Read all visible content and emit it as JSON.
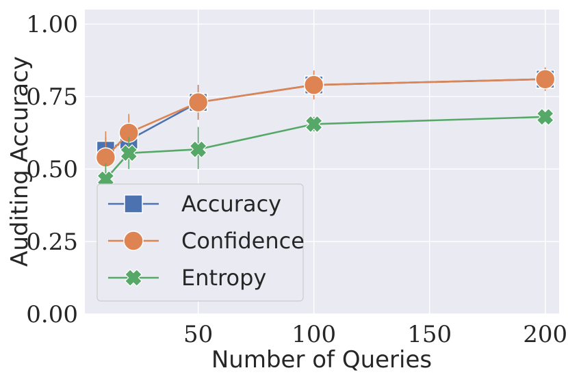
{
  "chart_data": {
    "type": "line",
    "title": "",
    "xlabel": "Number of Queries",
    "ylabel": "Auditing Accuracy",
    "xlim": [
      1,
      206
    ],
    "ylim": [
      0.0,
      1.05
    ],
    "xticks": [
      50,
      100,
      150,
      200
    ],
    "xtick_labels": [
      "50",
      "100",
      "150",
      "200"
    ],
    "yticks": [
      0.0,
      0.25,
      0.5,
      0.75,
      1.0
    ],
    "ytick_labels": [
      "0.00",
      "0.25",
      "0.50",
      "0.75",
      "1.00"
    ],
    "grid": true,
    "legend_position": "lower-left",
    "x": [
      10,
      20,
      50,
      100,
      200
    ],
    "series": [
      {
        "name": "Accuracy",
        "marker": "square",
        "color": "#4c72b0",
        "values": [
          0.565,
          0.6,
          0.73,
          0.79,
          0.81
        ],
        "error_low": [
          0.52,
          0.55,
          0.67,
          0.75,
          0.77
        ],
        "error_high": [
          0.61,
          0.65,
          0.79,
          0.83,
          0.85
        ]
      },
      {
        "name": "Confidence",
        "marker": "circle",
        "color": "#dd8452",
        "values": [
          0.54,
          0.625,
          0.73,
          0.79,
          0.81
        ],
        "error_low": [
          0.45,
          0.57,
          0.67,
          0.74,
          0.77
        ],
        "error_high": [
          0.63,
          0.69,
          0.79,
          0.84,
          0.85
        ]
      },
      {
        "name": "Entropy",
        "marker": "x",
        "color": "#55a868",
        "values": [
          0.465,
          0.555,
          0.568,
          0.655,
          0.68
        ],
        "error_low": [
          0.41,
          0.5,
          0.5,
          0.63,
          0.66
        ],
        "error_high": [
          0.52,
          0.61,
          0.645,
          0.68,
          0.7
        ]
      }
    ],
    "colors": {
      "plot_background": "#eaeaf2",
      "grid": "#ffffff",
      "legend_background": "#eaeaf2",
      "legend_border": "#cccccc"
    }
  }
}
